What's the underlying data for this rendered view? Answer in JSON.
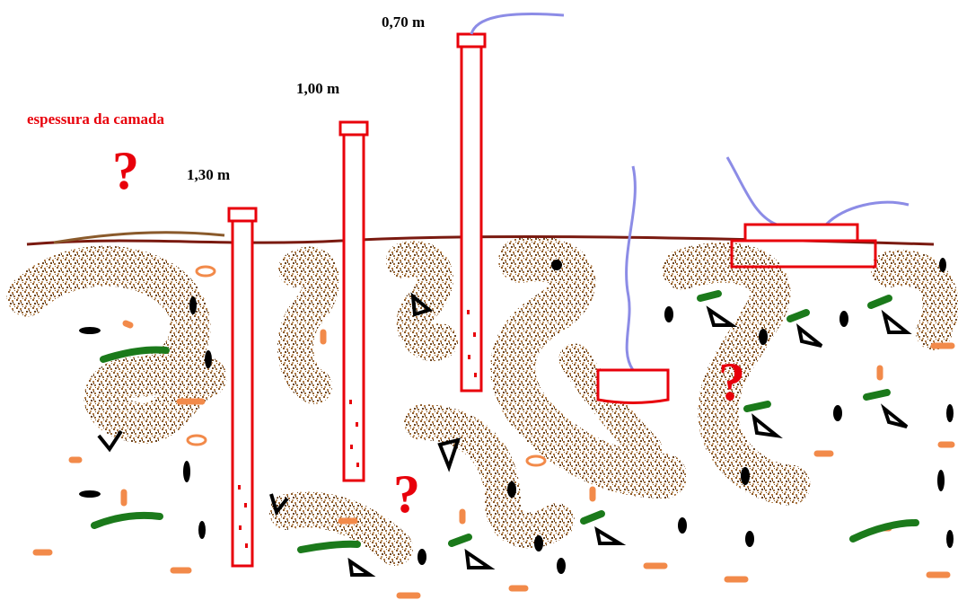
{
  "labels": {
    "layer_thickness": "espessura da camada",
    "depths": [
      "1,30 m",
      "1,00 m",
      "0,70 m"
    ],
    "question_marks": [
      "?",
      "?",
      "?"
    ]
  }
}
